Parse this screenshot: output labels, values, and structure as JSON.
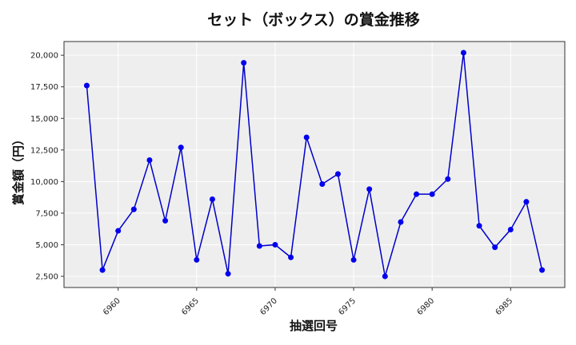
{
  "chart_data": {
    "type": "line",
    "title": "セット（ボックス）の賞金推移",
    "xlabel": "抽選回号",
    "ylabel": "賞金額（円）",
    "x": [
      6958,
      6959,
      6960,
      6961,
      6962,
      6963,
      6964,
      6965,
      6966,
      6967,
      6968,
      6969,
      6970,
      6971,
      6972,
      6973,
      6974,
      6975,
      6976,
      6977,
      6978,
      6979,
      6980,
      6981,
      6982,
      6983,
      6984,
      6985,
      6986,
      6987
    ],
    "series": [
      {
        "values": [
          17600,
          3000,
          6100,
          7800,
          11700,
          6900,
          12700,
          3800,
          8600,
          2700,
          19400,
          4900,
          5000,
          4000,
          13500,
          9800,
          10600,
          3800,
          9400,
          2500,
          6800,
          9000,
          9000,
          10200,
          20200,
          6500,
          4800,
          6200,
          8400,
          3000
        ],
        "color": "#0000cc"
      }
    ],
    "xticks": [
      6960,
      6965,
      6970,
      6975,
      6980,
      6985
    ],
    "yticks": [
      2500,
      5000,
      7500,
      10000,
      12500,
      15000,
      17500,
      20000
    ],
    "ytick_labels": [
      "2,500",
      "5,000",
      "7,500",
      "10,000",
      "12,500",
      "15,000",
      "17,500",
      "20,000"
    ],
    "xlim": [
      6956.55,
      6988.45
    ],
    "ylim": [
      1615,
      21085
    ],
    "grid": true,
    "background": "#eeeeee",
    "line_color": "#0000cc",
    "marker_color": "#0000ee"
  }
}
